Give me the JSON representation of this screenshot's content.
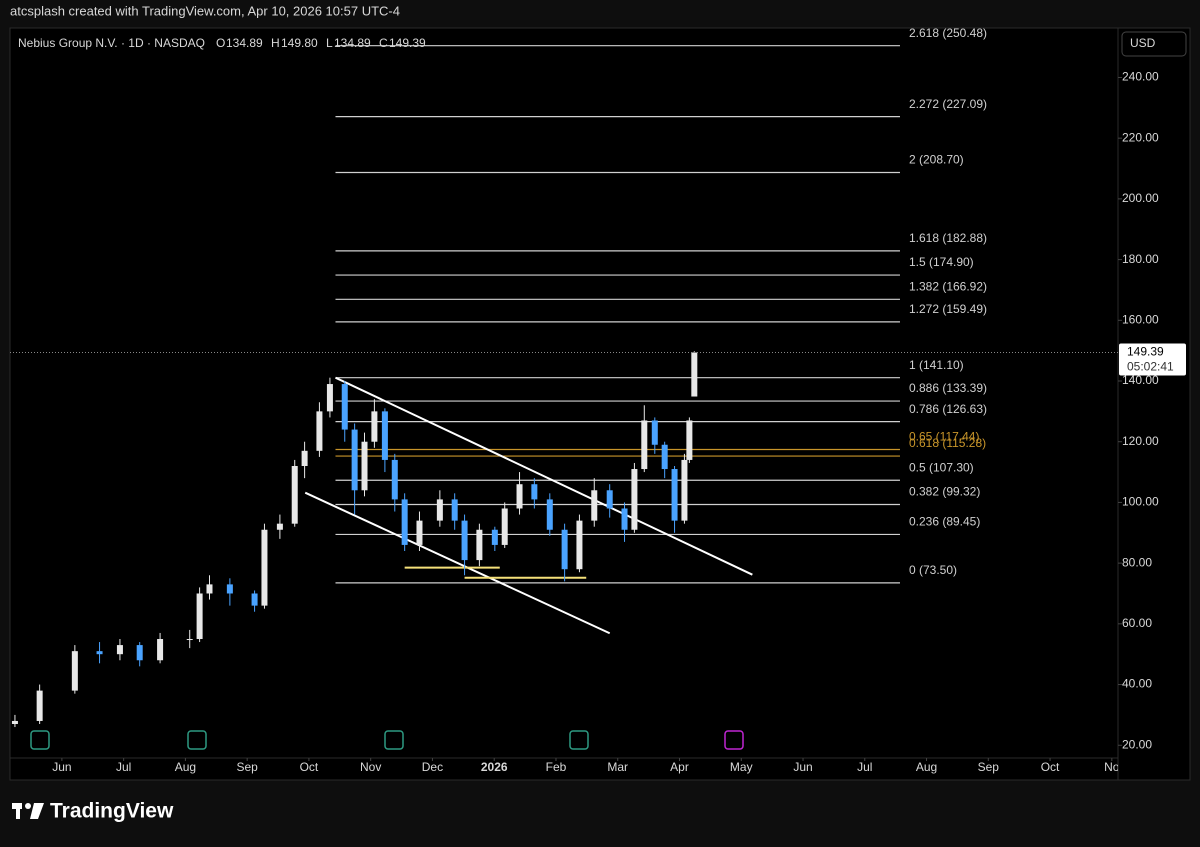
{
  "header": "atcsplash created with TradingView.com, Apr 10, 2026 10:57 UTC-4",
  "footer": "TradingView",
  "chart_data": {
    "type": "candlestick",
    "legend": {
      "symbol": "Nebius Group N.V. · 1D · NASDAQ",
      "o_label": "O",
      "o": "134.89",
      "h_label": "H",
      "h": "149.80",
      "l_label": "L",
      "l": "134.89",
      "c_label": "C",
      "c": "149.39"
    },
    "currency": "USD",
    "price_label": "149.39",
    "countdown": "05:02:41",
    "up_color": "#e8e8e8",
    "down_color": "#4aa3ff",
    "x": [
      5.24,
      5.64,
      6.21,
      6.61,
      6.94,
      7.26,
      7.59,
      8.07,
      8.23,
      8.39,
      8.72,
      9.12,
      9.28,
      9.53,
      9.77,
      9.93,
      10.17,
      10.34,
      10.58,
      10.74,
      10.9,
      11.06,
      11.23,
      11.39,
      11.55,
      11.79,
      12.12,
      12.36,
      12.52,
      12.76,
      13.01,
      13.17,
      13.41,
      13.65,
      13.9,
      14.14,
      14.38,
      14.62,
      14.87,
      15.11,
      15.27,
      15.43,
      15.6,
      15.76,
      15.92,
      16.08,
      16.16,
      16.24
    ],
    "open": [
      27,
      28,
      38,
      51,
      50,
      53,
      48,
      55,
      55,
      70,
      73,
      70,
      66,
      91,
      93,
      112,
      117,
      130,
      139,
      124,
      104,
      120,
      130,
      114,
      101,
      86,
      94,
      101,
      94,
      81,
      91,
      86,
      98,
      106,
      101,
      91,
      78,
      94,
      104,
      98,
      91,
      111,
      127,
      119,
      111,
      94,
      114,
      134.89
    ],
    "high": [
      30,
      40,
      53,
      54,
      55,
      54,
      57,
      58,
      72,
      76,
      75,
      71,
      93,
      96,
      114,
      120,
      133,
      141.1,
      140,
      126,
      123,
      134,
      131,
      116,
      103,
      97,
      104,
      103,
      96,
      93,
      92,
      100,
      110,
      108,
      103,
      93,
      96,
      108,
      106,
      100,
      113,
      132,
      128,
      120,
      112,
      116,
      128,
      149.8
    ],
    "low": [
      26,
      27,
      37,
      47,
      48,
      46,
      47,
      52,
      54,
      68,
      66,
      64,
      65,
      88,
      92,
      108,
      115,
      128,
      120,
      96,
      102,
      118,
      110,
      97,
      84,
      84,
      92,
      91,
      76,
      79,
      84,
      85,
      96,
      98,
      89,
      74,
      77,
      92,
      95,
      87,
      90,
      110,
      116,
      108,
      90,
      93,
      113,
      134.89
    ],
    "close": [
      28,
      38,
      51,
      50,
      53,
      48,
      55,
      55,
      70,
      73,
      70,
      66,
      91,
      93,
      112,
      117,
      130,
      139,
      124,
      104,
      120,
      130,
      114,
      101,
      86,
      94,
      101,
      94,
      81,
      91,
      86,
      98,
      106,
      101,
      91,
      78,
      94,
      104,
      98,
      91,
      111,
      127,
      119,
      111,
      94,
      114,
      127,
      149.39
    ],
    "xlim": [
      5.16,
      23.1
    ],
    "xticks": [
      {
        "value": 6,
        "label": "Jun"
      },
      {
        "value": 7,
        "label": "Jul"
      },
      {
        "value": 8,
        "label": "Aug"
      },
      {
        "value": 9,
        "label": "Sep"
      },
      {
        "value": 10,
        "label": "Oct"
      },
      {
        "value": 11,
        "label": "Nov"
      },
      {
        "value": 12,
        "label": "Dec"
      },
      {
        "value": 13,
        "label": "2026"
      },
      {
        "value": 14,
        "label": "Feb"
      },
      {
        "value": 15,
        "label": "Mar"
      },
      {
        "value": 16,
        "label": "Apr"
      },
      {
        "value": 17,
        "label": "May"
      },
      {
        "value": 18,
        "label": "Jun"
      },
      {
        "value": 19,
        "label": "Jul"
      },
      {
        "value": 20,
        "label": "Aug"
      },
      {
        "value": 21,
        "label": "Sep"
      },
      {
        "value": 22,
        "label": "Oct"
      },
      {
        "value": 23,
        "label": "No"
      }
    ],
    "ylim": [
      15.8,
      256.3
    ],
    "yticks": [
      {
        "value": 20,
        "label": "20.00"
      },
      {
        "value": 40,
        "label": "40.00"
      },
      {
        "value": 60,
        "label": "60.00"
      },
      {
        "value": 80,
        "label": "80.00"
      },
      {
        "value": 100,
        "label": "100.00"
      },
      {
        "value": 120,
        "label": "120.00"
      },
      {
        "value": 140,
        "label": "140.00"
      },
      {
        "value": 160,
        "label": "160.00"
      },
      {
        "value": 180,
        "label": "180.00"
      },
      {
        "value": 200,
        "label": "200.00"
      },
      {
        "value": 220,
        "label": "220.00"
      },
      {
        "value": 240,
        "label": "240.00"
      }
    ],
    "fib_levels": [
      {
        "label": "0 (73.50)",
        "value": 73.5,
        "color": "#d0d0d0"
      },
      {
        "label": "0.236 (89.45)",
        "value": 89.45,
        "color": "#d0d0d0"
      },
      {
        "label": "0.382 (99.32)",
        "value": 99.32,
        "color": "#d0d0d0"
      },
      {
        "label": "0.5 (107.30)",
        "value": 107.3,
        "color": "#d0d0d0"
      },
      {
        "label": "0.618 (115.28)",
        "value": 115.28,
        "color": "#c8952a"
      },
      {
        "label": "0.65 (117.44)",
        "value": 117.44,
        "color": "#c8952a"
      },
      {
        "label": "0.786 (126.63)",
        "value": 126.63,
        "color": "#d0d0d0"
      },
      {
        "label": "0.886 (133.39)",
        "value": 133.39,
        "color": "#d0d0d0"
      },
      {
        "label": "1 (141.10)",
        "value": 141.1,
        "color": "#d0d0d0"
      },
      {
        "label": "1.272 (159.49)",
        "value": 159.49,
        "color": "#d0d0d0"
      },
      {
        "label": "1.382 (166.92)",
        "value": 166.92,
        "color": "#d0d0d0"
      },
      {
        "label": "1.5 (174.90)",
        "value": 174.9,
        "color": "#d0d0d0"
      },
      {
        "label": "1.618 (182.88)",
        "value": 182.88,
        "color": "#d0d0d0"
      },
      {
        "label": "2 (208.70)",
        "value": 208.7,
        "color": "#d0d0d0"
      },
      {
        "label": "2.272 (227.09)",
        "value": 227.09,
        "color": "#d0d0d0"
      },
      {
        "label": "2.618 (250.48)",
        "value": 250.48,
        "color": "#d0d0d0"
      }
    ],
    "fib_x": [
      10.43,
      19.57
    ],
    "trendlines": [
      {
        "x": [
          10.43,
          17.18
        ],
        "y": [
          141.1,
          76.2
        ],
        "color": "#ffffff"
      },
      {
        "x": [
          9.94,
          14.87
        ],
        "y": [
          103.2,
          56.9
        ],
        "color": "#ffffff"
      },
      {
        "x": [
          11.55,
          13.09
        ],
        "y": [
          78.5,
          78.5
        ],
        "color": "#f5e17a"
      },
      {
        "x": [
          12.52,
          14.49
        ],
        "y": [
          75.2,
          75.2
        ],
        "color": "#f5e17a"
      }
    ]
  }
}
